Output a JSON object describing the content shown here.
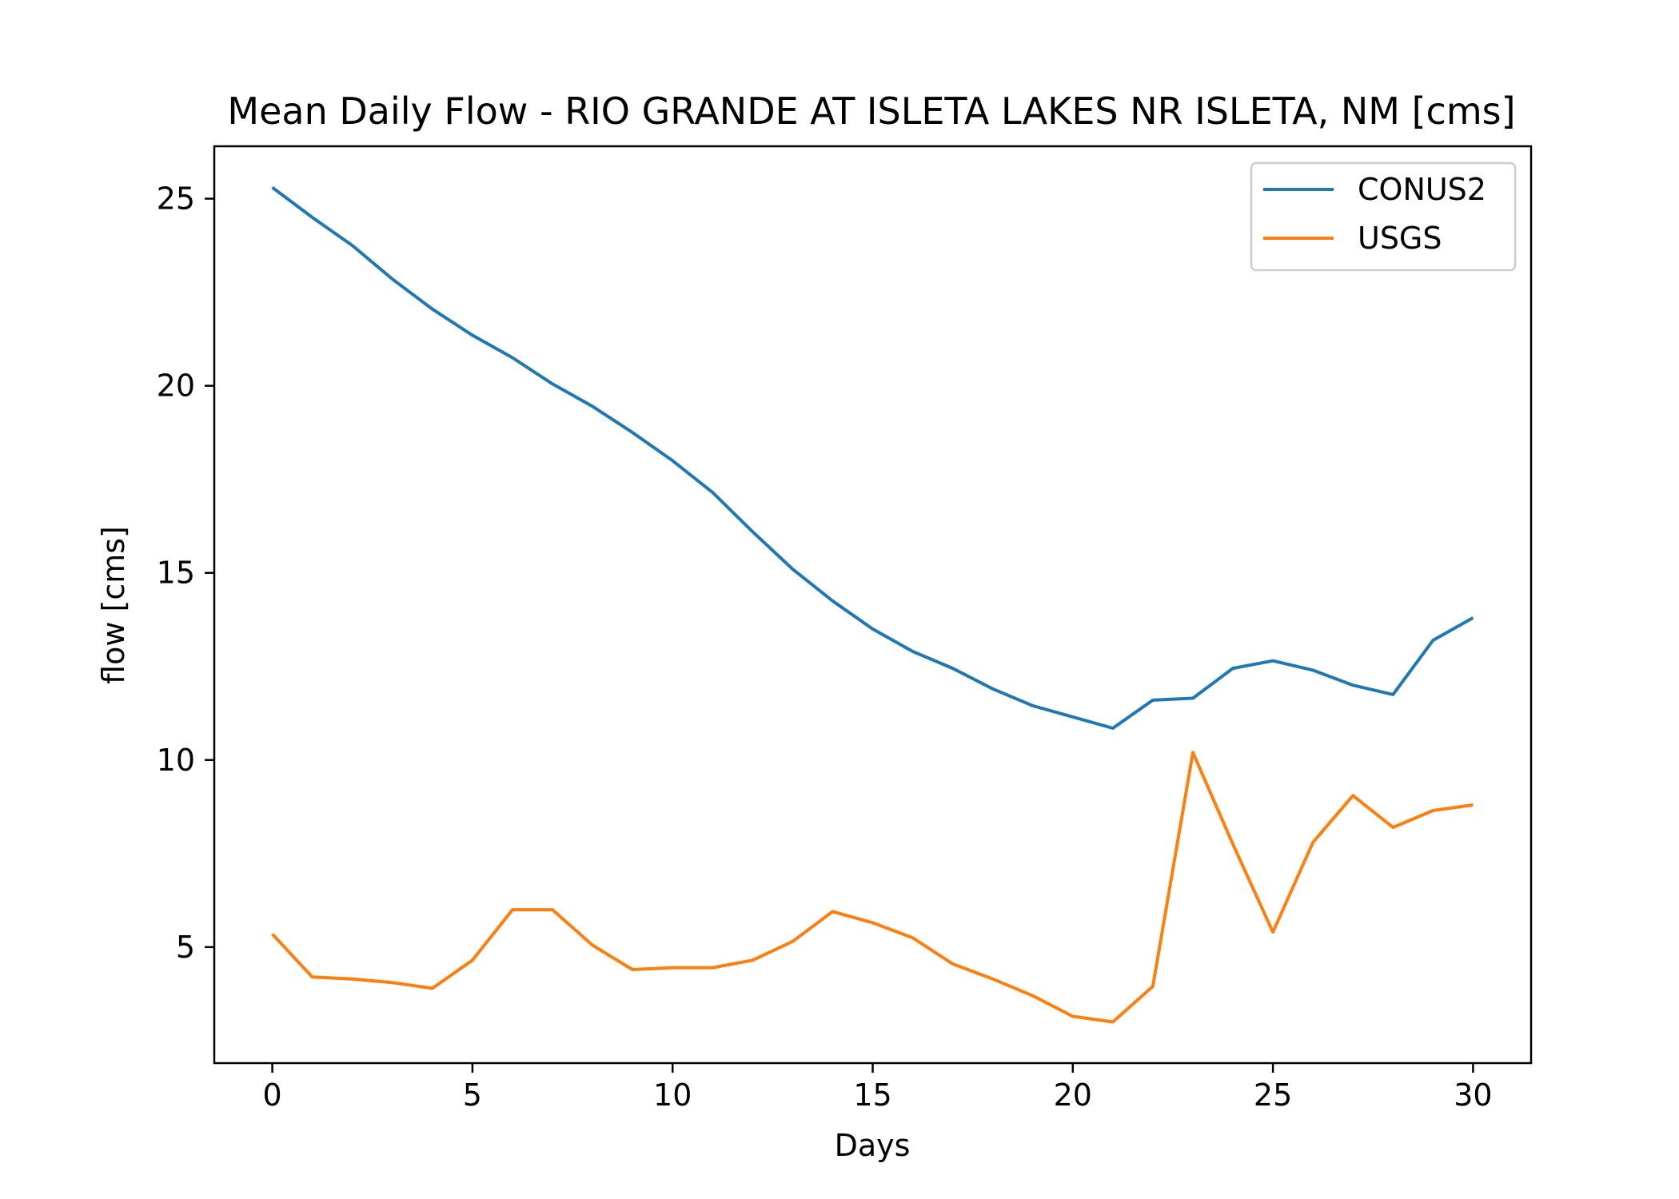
{
  "chart_data": {
    "type": "line",
    "title": "Mean Daily Flow - RIO GRANDE AT ISLETA LAKES NR ISLETA, NM [cms]",
    "xlabel": "Days",
    "ylabel": "flow [cms]",
    "xlim": [
      -1.45,
      31.45
    ],
    "ylim": [
      1.9,
      26.4
    ],
    "xticks": [
      0,
      5,
      10,
      15,
      20,
      25,
      30
    ],
    "yticks": [
      5,
      10,
      15,
      20,
      25
    ],
    "grid": false,
    "legend_position": "top-right",
    "x": [
      0,
      1,
      2,
      3,
      4,
      5,
      6,
      7,
      8,
      9,
      10,
      11,
      12,
      13,
      14,
      15,
      16,
      17,
      18,
      19,
      20,
      21,
      22,
      23,
      24,
      25,
      26,
      27,
      28,
      29,
      30
    ],
    "series": [
      {
        "name": "CONUS2",
        "color": "#1f77b4",
        "values": [
          25.3,
          24.5,
          23.75,
          22.85,
          22.05,
          21.35,
          20.75,
          20.05,
          19.45,
          18.75,
          18.0,
          17.15,
          16.1,
          15.1,
          14.25,
          13.5,
          12.9,
          12.45,
          11.9,
          11.45,
          11.15,
          10.85,
          11.6,
          11.65,
          12.45,
          12.65,
          12.4,
          12.0,
          11.75,
          13.2,
          13.8
        ]
      },
      {
        "name": "USGS",
        "color": "#ff7f0e",
        "values": [
          5.35,
          4.2,
          4.15,
          4.05,
          3.9,
          4.65,
          6.0,
          6.0,
          5.05,
          4.4,
          4.45,
          4.45,
          4.65,
          5.15,
          5.95,
          5.65,
          5.25,
          4.55,
          4.15,
          3.7,
          3.15,
          3.0,
          3.95,
          10.2,
          7.75,
          5.4,
          7.8,
          9.05,
          8.2,
          8.65,
          8.8
        ]
      }
    ]
  }
}
